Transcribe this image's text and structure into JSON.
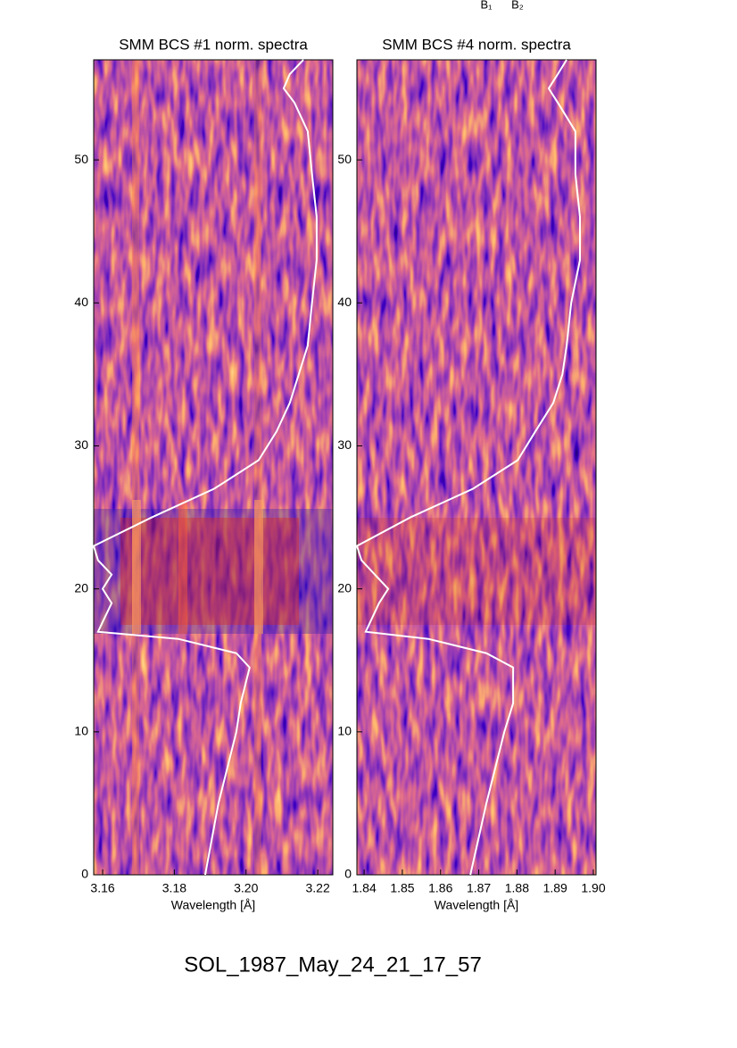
{
  "title": "SOL_1987_May_24_21_17_57",
  "annotations": [
    "B₁",
    "B₂"
  ],
  "chart_data": [
    {
      "type": "heatmap",
      "title": "SMM BCS #1 norm. spectra",
      "x_label": "Wavelength [Å]",
      "xlim": [
        3.1575,
        3.2242
      ],
      "xticks": [
        3.16,
        3.18,
        {
          "value": 3.2,
          "label": "3.20"
        },
        3.22
      ],
      "ylim": [
        0,
        57
      ],
      "yticks": [
        0,
        10,
        20,
        30,
        40,
        50
      ],
      "curve": {
        "color": "#ffffff",
        "y": [
          0,
          5,
          10,
          12,
          14.5,
          15.5,
          16.5,
          17,
          19,
          20,
          21,
          22,
          23,
          25,
          27,
          29,
          31,
          33,
          35,
          37,
          40,
          43,
          46,
          49,
          52,
          54,
          55,
          56,
          57
        ],
        "x": [
          3.1886,
          3.1923,
          3.1973,
          3.1985,
          3.201,
          3.1973,
          3.1811,
          3.1587,
          3.1625,
          3.16,
          3.1625,
          3.1587,
          3.1575,
          3.1737,
          3.1911,
          3.2035,
          3.2085,
          3.2122,
          3.2147,
          3.2172,
          3.2184,
          3.2197,
          3.2197,
          3.2184,
          3.2172,
          3.2135,
          3.2105,
          3.2122,
          3.216
        ]
      }
    },
    {
      "type": "heatmap",
      "title": "SMM BCS #4 norm. spectra",
      "x_label": "Wavelength [Å]",
      "xlim": [
        1.8381,
        1.9007
      ],
      "xticks": [
        1.84,
        1.85,
        1.86,
        1.87,
        1.88,
        1.89,
        {
          "value": 1.9,
          "label": "1.90"
        }
      ],
      "ylim": [
        0,
        57
      ],
      "yticks": [
        0,
        10,
        20,
        30,
        40,
        50
      ],
      "curve": {
        "color": "#ffffff",
        "y": [
          0,
          5,
          10,
          12,
          14.5,
          15.5,
          16.5,
          17,
          19,
          20,
          21,
          22,
          23,
          25,
          27,
          29,
          31,
          33,
          35,
          37,
          40,
          43,
          46,
          49,
          52,
          54,
          55,
          56,
          57
        ],
        "x": [
          1.8678,
          1.872,
          1.8767,
          1.879,
          1.879,
          1.872,
          1.8568,
          1.8404,
          1.8439,
          1.8463,
          1.8428,
          1.8393,
          1.8381,
          1.8521,
          1.8685,
          1.8802,
          1.8848,
          1.8895,
          1.8919,
          1.893,
          1.8942,
          1.8965,
          1.8965,
          1.8953,
          1.8953,
          1.8907,
          1.8883,
          1.8907,
          1.893
        ]
      }
    }
  ]
}
